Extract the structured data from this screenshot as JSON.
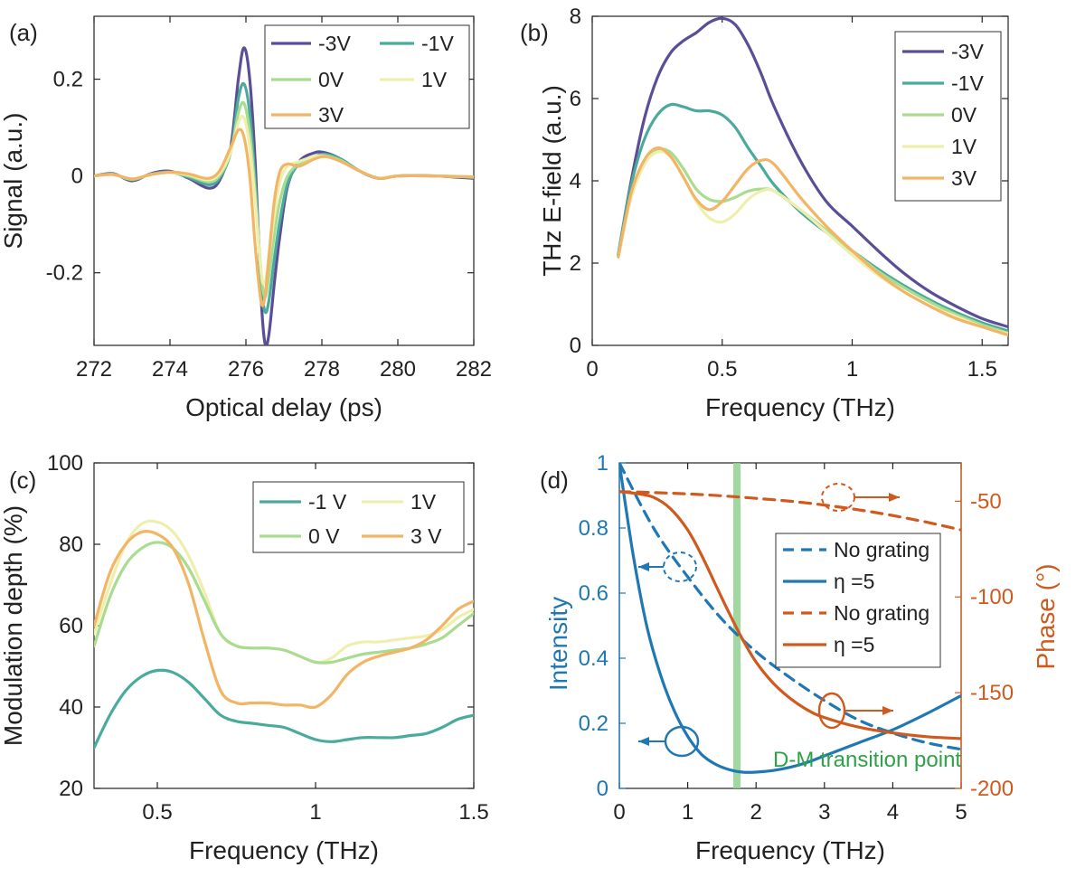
{
  "colors": {
    "m3V": "#5b4e96",
    "m1V": "#4aab9c",
    "z0V": "#a9dc91",
    "p1V": "#efefad",
    "p3V": "#f2b565",
    "intensity": "#1f78b4",
    "phase": "#d05a1e",
    "transition": "#8fd18f",
    "transition_text": "#2ea24a"
  },
  "chart_data": [
    {
      "panel": "(a)",
      "type": "line",
      "xlabel": "Optical delay (ps)",
      "ylabel": "Signal (a.u.)",
      "xlim": [
        272,
        282
      ],
      "ylim": [
        -0.35,
        0.33
      ],
      "xticks": [
        272,
        274,
        276,
        278,
        280,
        282
      ],
      "yticks": [
        -0.2,
        0,
        0.2
      ],
      "ytick_labels": [
        "-0.2",
        "0",
        "0.2"
      ],
      "legend": [
        "-3V",
        "-1V",
        "0V",
        "1V",
        "3V"
      ],
      "series": [
        {
          "name": "-3V",
          "color": "m3V",
          "x": [
            272,
            272.5,
            273,
            273.5,
            274,
            274.5,
            275,
            275.3,
            275.6,
            275.8,
            275.95,
            276.1,
            276.25,
            276.4,
            276.5,
            276.6,
            276.75,
            276.9,
            277.1,
            277.4,
            277.8,
            278.1,
            278.5,
            279,
            279.5,
            280,
            281,
            282
          ],
          "y": [
            0,
            0.005,
            -0.01,
            0.005,
            0.01,
            -0.005,
            -0.025,
            -0.01,
            0.06,
            0.2,
            0.265,
            0.2,
            0.02,
            -0.25,
            -0.345,
            -0.33,
            -0.22,
            -0.12,
            -0.02,
            0.03,
            0.048,
            0.048,
            0.035,
            0.01,
            -0.005,
            0,
            0,
            -0.005
          ]
        },
        {
          "name": "-1V",
          "color": "m1V",
          "x": [
            272,
            272.5,
            273,
            273.5,
            274,
            274.5,
            275,
            275.3,
            275.6,
            275.8,
            275.95,
            276.1,
            276.25,
            276.4,
            276.5,
            276.6,
            276.75,
            276.9,
            277.1,
            277.4,
            277.8,
            278.1,
            278.5,
            279,
            279.5,
            280,
            281,
            282
          ],
          "y": [
            0,
            0.004,
            -0.008,
            0.004,
            0.008,
            -0.003,
            -0.018,
            -0.005,
            0.05,
            0.16,
            0.19,
            0.13,
            -0.02,
            -0.22,
            -0.28,
            -0.26,
            -0.17,
            -0.09,
            -0.015,
            0.025,
            0.04,
            0.045,
            0.035,
            0.01,
            -0.005,
            0,
            0,
            -0.003
          ]
        },
        {
          "name": "0V",
          "color": "z0V",
          "x": [
            272,
            272.5,
            273,
            273.5,
            274,
            274.5,
            275,
            275.3,
            275.6,
            275.8,
            275.95,
            276.1,
            276.25,
            276.4,
            276.5,
            276.6,
            276.75,
            276.9,
            277.1,
            277.4,
            277.8,
            278.1,
            278.5,
            279,
            279.5,
            280,
            281,
            282
          ],
          "y": [
            0,
            0.003,
            -0.007,
            0.003,
            0.007,
            0,
            -0.012,
            0,
            0.05,
            0.13,
            0.15,
            0.09,
            -0.04,
            -0.2,
            -0.25,
            -0.21,
            -0.12,
            -0.05,
            0,
            0.025,
            0.04,
            0.042,
            0.032,
            0.01,
            -0.004,
            0,
            0,
            -0.002
          ]
        },
        {
          "name": "1V",
          "color": "p1V",
          "x": [
            272,
            272.5,
            273,
            273.5,
            274,
            274.5,
            275,
            275.3,
            275.6,
            275.8,
            275.95,
            276.1,
            276.25,
            276.4,
            276.5,
            276.6,
            276.75,
            276.9,
            277.1,
            277.4,
            277.8,
            278.1,
            278.5,
            279,
            279.5,
            280,
            281,
            282
          ],
          "y": [
            0,
            0.003,
            -0.006,
            0.003,
            0.007,
            0.002,
            -0.008,
            0.005,
            0.05,
            0.11,
            0.12,
            0.06,
            -0.06,
            -0.2,
            -0.22,
            -0.17,
            -0.08,
            -0.01,
            0.02,
            0.03,
            0.04,
            0.04,
            0.03,
            0.01,
            -0.004,
            0,
            0,
            -0.002
          ]
        },
        {
          "name": "3V",
          "color": "p3V",
          "x": [
            272,
            272.5,
            273,
            273.5,
            274,
            274.5,
            275,
            275.3,
            275.6,
            275.8,
            275.95,
            276.1,
            276.25,
            276.4,
            276.5,
            276.6,
            276.75,
            276.9,
            277.1,
            277.4,
            277.8,
            278.1,
            278.5,
            279,
            279.5,
            280,
            281,
            282
          ],
          "y": [
            0,
            0.003,
            -0.006,
            0.003,
            0.008,
            0.004,
            -0.005,
            0.01,
            0.06,
            0.095,
            0.08,
            0,
            -0.15,
            -0.26,
            -0.25,
            -0.17,
            -0.05,
            0.01,
            0.025,
            0.02,
            0.035,
            0.04,
            0.03,
            0.01,
            -0.005,
            0,
            0,
            -0.002
          ]
        }
      ]
    },
    {
      "panel": "(b)",
      "type": "line",
      "xlabel": "Frequency (THz)",
      "ylabel": "THz E-field (a.u.)",
      "xlim": [
        0,
        1.6
      ],
      "ylim": [
        0,
        8
      ],
      "xticks": [
        0,
        0.5,
        1,
        1.5
      ],
      "xtick_labels": [
        "0",
        "0.5",
        "1",
        "1.5"
      ],
      "yticks": [
        0,
        2,
        4,
        6,
        8
      ],
      "legend": [
        "-3V",
        "-1V",
        "0V",
        "1V",
        "3V"
      ],
      "series": [
        {
          "name": "-3V",
          "color": "m3V",
          "x": [
            0.1,
            0.15,
            0.2,
            0.25,
            0.3,
            0.35,
            0.4,
            0.45,
            0.5,
            0.55,
            0.6,
            0.65,
            0.7,
            0.8,
            0.9,
            1.0,
            1.1,
            1.2,
            1.3,
            1.4,
            1.5,
            1.6
          ],
          "y": [
            2.2,
            4.0,
            5.5,
            6.5,
            7.1,
            7.4,
            7.6,
            7.85,
            7.95,
            7.8,
            7.3,
            6.6,
            5.8,
            4.5,
            3.5,
            2.9,
            2.3,
            1.75,
            1.3,
            0.95,
            0.65,
            0.45
          ]
        },
        {
          "name": "-1V",
          "color": "m1V",
          "x": [
            0.1,
            0.15,
            0.2,
            0.25,
            0.3,
            0.35,
            0.4,
            0.45,
            0.5,
            0.55,
            0.6,
            0.65,
            0.7,
            0.8,
            0.9,
            1.0,
            1.1,
            1.2,
            1.3,
            1.4,
            1.5,
            1.6
          ],
          "y": [
            2.2,
            3.9,
            5.0,
            5.6,
            5.85,
            5.8,
            5.7,
            5.7,
            5.6,
            5.3,
            4.8,
            4.35,
            3.9,
            3.25,
            2.75,
            2.3,
            1.85,
            1.45,
            1.1,
            0.8,
            0.55,
            0.35
          ]
        },
        {
          "name": "0V",
          "color": "z0V",
          "x": [
            0.1,
            0.15,
            0.2,
            0.25,
            0.3,
            0.35,
            0.4,
            0.45,
            0.5,
            0.55,
            0.6,
            0.65,
            0.7,
            0.8,
            0.9,
            1.0,
            1.1,
            1.2,
            1.3,
            1.4,
            1.5,
            1.6
          ],
          "y": [
            2.15,
            3.6,
            4.4,
            4.75,
            4.7,
            4.3,
            3.8,
            3.55,
            3.5,
            3.6,
            3.75,
            3.8,
            3.75,
            3.3,
            2.8,
            2.3,
            1.8,
            1.4,
            1.05,
            0.75,
            0.5,
            0.3
          ]
        },
        {
          "name": "1V",
          "color": "p1V",
          "x": [
            0.1,
            0.15,
            0.2,
            0.25,
            0.3,
            0.35,
            0.4,
            0.45,
            0.5,
            0.55,
            0.6,
            0.65,
            0.7,
            0.8,
            0.9,
            1.0,
            1.1,
            1.2,
            1.3,
            1.4,
            1.5,
            1.6
          ],
          "y": [
            2.15,
            3.6,
            4.4,
            4.7,
            4.6,
            4.1,
            3.5,
            3.1,
            3.0,
            3.2,
            3.55,
            3.75,
            3.75,
            3.3,
            2.75,
            2.2,
            1.7,
            1.3,
            0.95,
            0.7,
            0.45,
            0.28
          ]
        },
        {
          "name": "3V",
          "color": "p3V",
          "x": [
            0.1,
            0.15,
            0.2,
            0.25,
            0.3,
            0.35,
            0.4,
            0.45,
            0.5,
            0.55,
            0.6,
            0.65,
            0.7,
            0.8,
            0.9,
            1.0,
            1.1,
            1.2,
            1.3,
            1.4,
            1.5,
            1.6
          ],
          "y": [
            2.15,
            3.7,
            4.5,
            4.8,
            4.6,
            4.1,
            3.55,
            3.3,
            3.5,
            3.9,
            4.3,
            4.5,
            4.4,
            3.6,
            2.9,
            2.3,
            1.75,
            1.3,
            0.95,
            0.65,
            0.45,
            0.25
          ]
        }
      ]
    },
    {
      "panel": "(c)",
      "type": "line",
      "xlabel": "Frequency (THz)",
      "ylabel": "Modulation depth (%)",
      "xlim": [
        0.3,
        1.5
      ],
      "ylim": [
        20,
        100
      ],
      "xticks": [
        0.5,
        1,
        1.5
      ],
      "xtick_labels": [
        "0.5",
        "1",
        "1.5"
      ],
      "yticks": [
        20,
        40,
        60,
        80,
        100
      ],
      "legend": [
        "-1 V",
        "1V",
        "0 V",
        "3 V"
      ],
      "series": [
        {
          "name": "-1 V",
          "color": "m1V",
          "x": [
            0.3,
            0.35,
            0.4,
            0.45,
            0.5,
            0.55,
            0.6,
            0.65,
            0.7,
            0.75,
            0.8,
            0.85,
            0.9,
            0.95,
            1.0,
            1.05,
            1.1,
            1.15,
            1.2,
            1.25,
            1.3,
            1.35,
            1.4,
            1.45,
            1.5
          ],
          "y": [
            30,
            38,
            44,
            47.5,
            49,
            48.5,
            46,
            42,
            38,
            36.5,
            36,
            35.5,
            35,
            33.5,
            32,
            31.5,
            32,
            32.5,
            32.5,
            32.5,
            33,
            33.5,
            35,
            37,
            38
          ]
        },
        {
          "name": "1V",
          "color": "p1V",
          "x": [
            0.3,
            0.35,
            0.4,
            0.45,
            0.5,
            0.55,
            0.6,
            0.65,
            0.7,
            0.75,
            0.8,
            0.85,
            0.9,
            0.95,
            1.0,
            1.05,
            1.1,
            1.15,
            1.2,
            1.25,
            1.3,
            1.35,
            1.4,
            1.45,
            1.5
          ],
          "y": [
            58,
            70,
            80,
            85,
            85.5,
            83,
            77,
            68,
            58,
            55,
            54.5,
            54.5,
            54,
            52.5,
            51,
            52,
            55,
            56,
            56,
            56.5,
            57,
            57.5,
            59,
            62,
            64
          ]
        },
        {
          "name": "0 V",
          "color": "z0V",
          "x": [
            0.3,
            0.35,
            0.4,
            0.45,
            0.5,
            0.55,
            0.6,
            0.65,
            0.7,
            0.75,
            0.8,
            0.85,
            0.9,
            0.95,
            1.0,
            1.05,
            1.1,
            1.15,
            1.2,
            1.25,
            1.3,
            1.35,
            1.4,
            1.45,
            1.5
          ],
          "y": [
            55,
            67,
            75,
            79,
            80.5,
            79,
            74,
            66,
            58,
            55,
            54.5,
            54.5,
            54,
            52.5,
            51,
            51,
            52,
            53,
            53.5,
            54,
            54.5,
            55.5,
            57,
            60,
            63
          ]
        },
        {
          "name": "3 V",
          "color": "p3V",
          "x": [
            0.3,
            0.35,
            0.4,
            0.45,
            0.5,
            0.55,
            0.6,
            0.65,
            0.7,
            0.75,
            0.8,
            0.85,
            0.9,
            0.95,
            1.0,
            1.05,
            1.1,
            1.15,
            1.2,
            1.25,
            1.3,
            1.35,
            1.4,
            1.45,
            1.5
          ],
          "y": [
            60,
            73,
            80,
            83,
            82.5,
            79,
            70,
            56,
            44,
            41,
            41,
            41,
            40.5,
            40.5,
            40,
            43,
            48,
            51,
            52.5,
            53.5,
            54.5,
            56.5,
            60,
            64,
            66
          ]
        }
      ]
    },
    {
      "panel": "(d)",
      "type": "line",
      "xlabel": "Frequency (THz)",
      "ylabel_left": "Intensity",
      "ylabel_right": "Phase (°)",
      "xlim": [
        0,
        5
      ],
      "ylim_left": [
        0,
        1
      ],
      "ylim_right": [
        -200,
        -30
      ],
      "xticks": [
        0,
        1,
        2,
        3,
        4,
        5
      ],
      "yticks_left": [
        0,
        0.2,
        0.4,
        0.6,
        0.8,
        1
      ],
      "ytick_labels_left": [
        "0",
        "0.2",
        "0.4",
        "0.6",
        "0.8",
        "1"
      ],
      "yticks_right": [
        -200,
        -150,
        -100,
        -50
      ],
      "transition_x": 1.72,
      "annotation": "D-M transition point",
      "legend": [
        "No grating",
        "η =5",
        "No grating",
        "η =5"
      ],
      "series": [
        {
          "name": "No grating",
          "axis": "left",
          "style": "dashed",
          "color": "intensity",
          "x": [
            0,
            0.5,
            1,
            1.5,
            2,
            2.5,
            3,
            3.5,
            4,
            4.5,
            5
          ],
          "y": [
            1.0,
            0.8,
            0.65,
            0.52,
            0.42,
            0.34,
            0.27,
            0.21,
            0.17,
            0.14,
            0.12
          ]
        },
        {
          "name": "η =5",
          "axis": "left",
          "style": "solid",
          "color": "intensity",
          "x": [
            0,
            0.2,
            0.4,
            0.6,
            0.8,
            1.0,
            1.2,
            1.4,
            1.6,
            1.8,
            2.0,
            2.25,
            2.5,
            2.75,
            3.0,
            3.5,
            4.0,
            4.5,
            5.0
          ],
          "y": [
            1.0,
            0.72,
            0.5,
            0.35,
            0.24,
            0.16,
            0.105,
            0.075,
            0.058,
            0.05,
            0.05,
            0.055,
            0.065,
            0.08,
            0.1,
            0.14,
            0.18,
            0.23,
            0.285
          ]
        },
        {
          "name": "No grating",
          "axis": "right",
          "style": "dashed",
          "color": "phase",
          "x": [
            0,
            0.5,
            1,
            1.5,
            2,
            2.5,
            3,
            3.5,
            4,
            4.5,
            5
          ],
          "y": [
            -45,
            -45.5,
            -46.2,
            -47.2,
            -48.5,
            -50,
            -52,
            -54.5,
            -57.5,
            -61,
            -65
          ]
        },
        {
          "name": "η =5",
          "axis": "right",
          "style": "solid",
          "color": "phase",
          "x": [
            0,
            0.25,
            0.5,
            0.75,
            1.0,
            1.2,
            1.4,
            1.6,
            1.8,
            2.0,
            2.25,
            2.5,
            2.75,
            3.0,
            3.5,
            4.0,
            4.5,
            5.0
          ],
          "y": [
            -45,
            -46,
            -48,
            -54,
            -65,
            -78,
            -93,
            -108,
            -122,
            -134,
            -145,
            -153,
            -159,
            -163,
            -168,
            -171,
            -173,
            -174
          ]
        }
      ]
    }
  ]
}
